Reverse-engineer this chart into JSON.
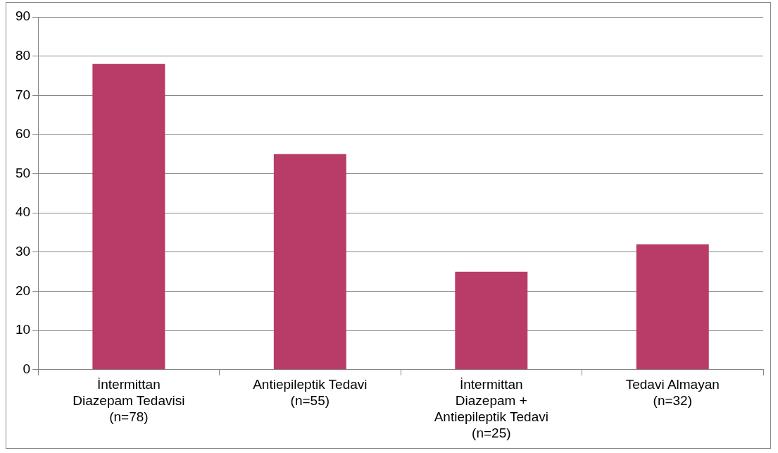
{
  "chart_data": {
    "type": "bar",
    "categories": [
      "İntermittan\nDiazepam Tedavisi\n(n=78)",
      "Antiepileptik Tedavi\n(n=55)",
      "İntermittan\nDiazepam +\nAntiepileptik Tedavi\n(n=25)",
      "Tedavi Almayan\n(n=32)"
    ],
    "values": [
      78,
      55,
      25,
      32
    ],
    "color": "#b93c68",
    "ylim": [
      0,
      90
    ],
    "yticks": [
      0,
      10,
      20,
      30,
      40,
      50,
      60,
      70,
      80,
      90
    ],
    "grid": "y",
    "legend": false
  }
}
